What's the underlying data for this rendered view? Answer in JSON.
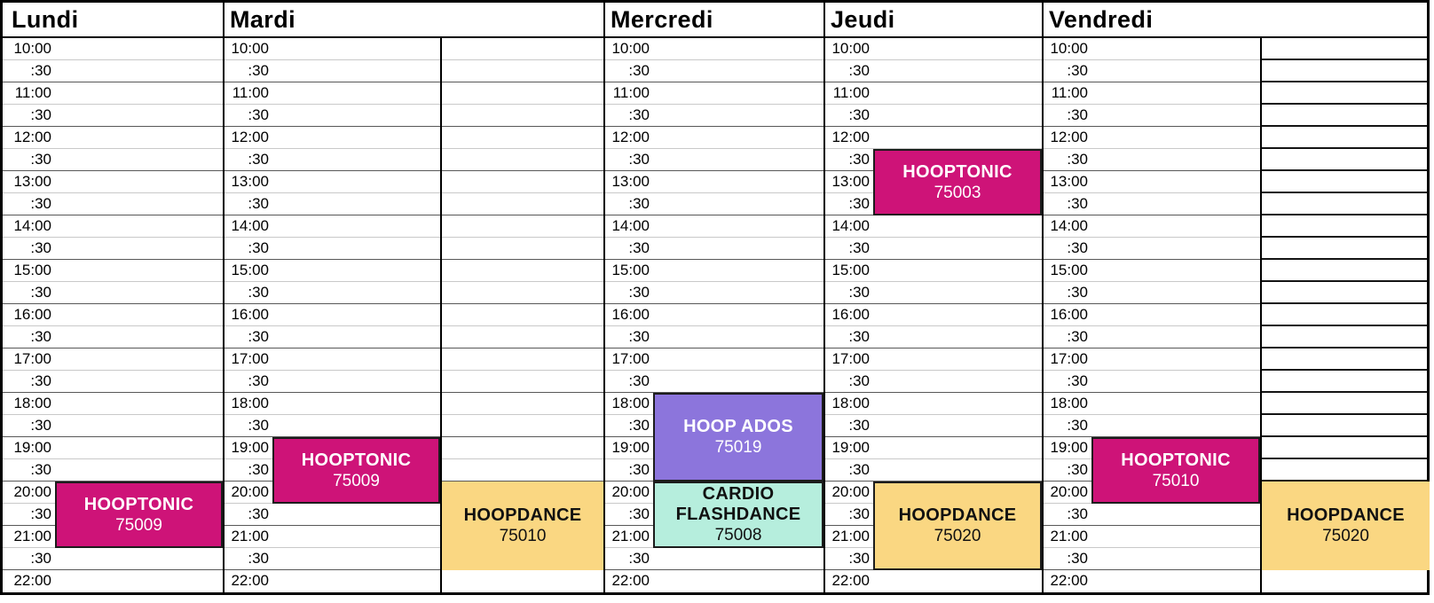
{
  "schedule": {
    "time_labels": [
      "10:00",
      ":30",
      "11:00",
      ":30",
      "12:00",
      ":30",
      "13:00",
      ":30",
      "14:00",
      ":30",
      "15:00",
      ":30",
      "16:00",
      ":30",
      "17:00",
      ":30",
      "18:00",
      ":30",
      "19:00",
      ":30",
      "20:00",
      ":30",
      "21:00",
      ":30",
      "22:00"
    ],
    "days": [
      {
        "name": "Lundi",
        "events": [
          {
            "title": "HOOPTONIC",
            "code": "75009",
            "start": "20:00",
            "end": "21:30",
            "color": "pink",
            "placement": "main",
            "bordered": true
          }
        ]
      },
      {
        "name": "Mardi",
        "events": [
          {
            "title": "HOOPTONIC",
            "code": "75009",
            "start": "19:00",
            "end": "20:30",
            "color": "pink",
            "placement": "main",
            "bordered": true
          },
          {
            "title": "HOOPDANCE",
            "code": "75010",
            "start": "20:00",
            "end": "22:00",
            "color": "yellow",
            "placement": "right",
            "bordered": false
          }
        ]
      },
      {
        "name": "Mercredi",
        "events": [
          {
            "title": "HOOP ADOS",
            "code": "75019",
            "start": "18:00",
            "end": "20:00",
            "color": "purple",
            "placement": "main",
            "bordered": true
          },
          {
            "title": "CARDIO FLASHDANCE",
            "code": "75008",
            "start": "20:00",
            "end": "21:30",
            "color": "teal",
            "placement": "main",
            "bordered": true
          }
        ]
      },
      {
        "name": "Jeudi",
        "events": [
          {
            "title": "HOOPTONIC",
            "code": "75003",
            "start": "12:30",
            "end": "14:00",
            "color": "pink",
            "placement": "main",
            "bordered": true
          },
          {
            "title": "HOOPDANCE",
            "code": "75020",
            "start": "20:00",
            "end": "22:00",
            "color": "yellow",
            "placement": "main",
            "bordered": true
          }
        ]
      },
      {
        "name": "Vendredi",
        "events": [
          {
            "title": "HOOPTONIC",
            "code": "75010",
            "start": "19:00",
            "end": "20:30",
            "color": "pink",
            "placement": "main",
            "bordered": true
          },
          {
            "title": "HOOPDANCE",
            "code": "75020",
            "start": "20:00",
            "end": "22:00",
            "color": "yellow",
            "placement": "right",
            "bordered": false
          }
        ]
      }
    ],
    "colors": {
      "pink": "#ce1378",
      "purple": "#8c75dc",
      "teal": "#b6eedd",
      "yellow": "#fad782",
      "event_border": "#1c1c1c",
      "text_on_dark": "#ffffff",
      "text_on_light": "#111111",
      "grid_light": "#c9c9c9",
      "grid_dark": "#585858",
      "table_border": "#000000"
    }
  }
}
